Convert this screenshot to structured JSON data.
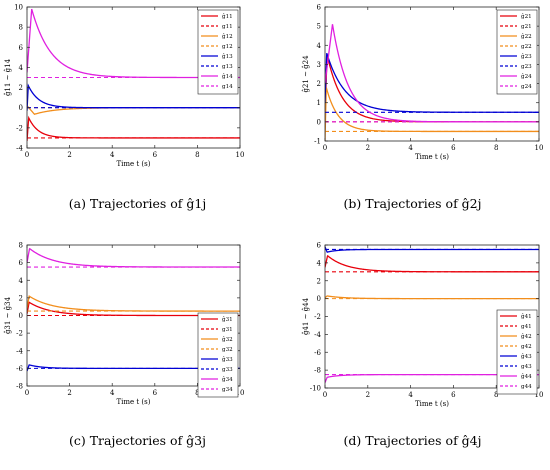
{
  "chart_data": [
    {
      "type": "line",
      "caption": "(a) Trajectories of ĝ1j",
      "xlabel": "Time t (s)",
      "ylabel": "ĝ11 ~ ĝ14",
      "xlim": [
        0,
        10
      ],
      "ylim": [
        -4,
        10
      ],
      "xticks": [
        0,
        2,
        4,
        6,
        8,
        10
      ],
      "yticks": [
        -4,
        -2,
        0,
        2,
        4,
        6,
        8,
        10
      ],
      "legend_position": "top-right",
      "series": [
        {
          "name": "ĝ11",
          "color": "#e8000b",
          "dash": false,
          "target": -3,
          "start": -3.3,
          "peak": -1.0,
          "peak_t": 0.08,
          "tau": 0.45
        },
        {
          "name": "g11",
          "color": "#e8000b",
          "dash": true,
          "const": -3
        },
        {
          "name": "ĝ12",
          "color": "#f28e1c",
          "dash": false,
          "target": 0,
          "start": 0.2,
          "peak": -0.65,
          "peak_t": 0.35,
          "tau": 1.0
        },
        {
          "name": "g12",
          "color": "#f28e1c",
          "dash": true,
          "const": 0
        },
        {
          "name": "ĝ13",
          "color": "#0000d4",
          "dash": false,
          "target": 0,
          "start": -0.3,
          "peak": 2.2,
          "peak_t": 0.06,
          "tau": 0.5
        },
        {
          "name": "g13",
          "color": "#0000d4",
          "dash": true,
          "const": 0
        },
        {
          "name": "ĝ14",
          "color": "#e020e0",
          "dash": false,
          "target": 3,
          "start": 3.5,
          "peak": 9.8,
          "peak_t": 0.22,
          "tau": 0.9
        },
        {
          "name": "g14",
          "color": "#e020e0",
          "dash": true,
          "const": 3
        }
      ]
    },
    {
      "type": "line",
      "caption": "(b) Trajectories of ĝ2j",
      "xlabel": "Time t (s)",
      "ylabel": "ĝ21 ~ ĝ24",
      "xlim": [
        0,
        10
      ],
      "ylim": [
        -1,
        6
      ],
      "xticks": [
        0,
        2,
        4,
        6,
        8,
        10
      ],
      "yticks": [
        -1,
        0,
        1,
        2,
        3,
        4,
        5,
        6
      ],
      "legend_position": "top-right",
      "series": [
        {
          "name": "ĝ21",
          "color": "#e8000b",
          "dash": false,
          "target": 0,
          "start": 0.5,
          "peak": 3.5,
          "peak_t": 0.1,
          "tau": 0.7
        },
        {
          "name": "g21",
          "color": "#e8000b",
          "dash": true,
          "const": 0
        },
        {
          "name": "ĝ22",
          "color": "#f28e1c",
          "dash": false,
          "target": -0.5,
          "start": -1.0,
          "peak": 1.8,
          "peak_t": 0.06,
          "tau": 0.55
        },
        {
          "name": "g22",
          "color": "#f28e1c",
          "dash": true,
          "const": -0.5
        },
        {
          "name": "ĝ23",
          "color": "#0000d4",
          "dash": false,
          "target": 0.5,
          "start": 1.0,
          "peak": 3.6,
          "peak_t": 0.08,
          "tau": 0.85
        },
        {
          "name": "g23",
          "color": "#0000d4",
          "dash": true,
          "const": 0.5
        },
        {
          "name": "ĝ24",
          "color": "#e020e0",
          "dash": false,
          "target": 0,
          "start": 2.0,
          "peak": 5.1,
          "peak_t": 0.35,
          "tau": 0.75
        },
        {
          "name": "g24",
          "color": "#e020e0",
          "dash": true,
          "const": 0
        }
      ]
    },
    {
      "type": "line",
      "caption": "(c) Trajectories of ĝ3j",
      "xlabel": "Time t (s)",
      "ylabel": "ĝ31 ~ ĝ34",
      "xlim": [
        0,
        10
      ],
      "ylim": [
        -8,
        8
      ],
      "xticks": [
        0,
        2,
        4,
        6,
        8,
        10
      ],
      "yticks": [
        -8,
        -6,
        -4,
        -2,
        0,
        2,
        4,
        6,
        8
      ],
      "legend_position": "bottom-right",
      "series": [
        {
          "name": "ĝ31",
          "color": "#e8000b",
          "dash": false,
          "target": 0,
          "start": 0.2,
          "peak": 1.5,
          "peak_t": 0.1,
          "tau": 1.0
        },
        {
          "name": "g31",
          "color": "#e8000b",
          "dash": true,
          "const": 0
        },
        {
          "name": "ĝ32",
          "color": "#f28e1c",
          "dash": false,
          "target": 0.5,
          "start": 0.8,
          "peak": 2.2,
          "peak_t": 0.1,
          "tau": 1.1
        },
        {
          "name": "g32",
          "color": "#f28e1c",
          "dash": true,
          "const": 0.5
        },
        {
          "name": "ĝ33",
          "color": "#0000d4",
          "dash": false,
          "target": -6,
          "start": -6.3,
          "peak": -5.6,
          "peak_t": 0.1,
          "tau": 0.6
        },
        {
          "name": "g33",
          "color": "#0000d4",
          "dash": true,
          "const": -6
        },
        {
          "name": "ĝ34",
          "color": "#e020e0",
          "dash": false,
          "target": 5.5,
          "start": 6.0,
          "peak": 7.6,
          "peak_t": 0.12,
          "tau": 1.1
        },
        {
          "name": "g34",
          "color": "#e020e0",
          "dash": true,
          "const": 5.5
        }
      ]
    },
    {
      "type": "line",
      "caption": "(d) Trajectories of ĝ4j",
      "xlabel": "Time t (s)",
      "ylabel": "ĝ41 ~ ĝ44",
      "xlim": [
        0,
        10
      ],
      "ylim": [
        -10,
        6
      ],
      "xticks": [
        0,
        2,
        4,
        6,
        8,
        10
      ],
      "yticks": [
        -10,
        -8,
        -6,
        -4,
        -2,
        0,
        2,
        4,
        6
      ],
      "legend_position": "middle-right",
      "series": [
        {
          "name": "ĝ41",
          "color": "#e8000b",
          "dash": false,
          "target": 3,
          "start": 3.5,
          "peak": 4.8,
          "peak_t": 0.12,
          "tau": 0.9
        },
        {
          "name": "g41",
          "color": "#e8000b",
          "dash": true,
          "const": 3
        },
        {
          "name": "ĝ42",
          "color": "#f28e1c",
          "dash": false,
          "target": 0,
          "start": 0.1,
          "peak": 0.3,
          "peak_t": 0.1,
          "tau": 0.8
        },
        {
          "name": "g42",
          "color": "#f28e1c",
          "dash": true,
          "const": 0
        },
        {
          "name": "ĝ43",
          "color": "#0000d4",
          "dash": false,
          "target": 5.5,
          "start": 5.8,
          "peak": 5.2,
          "peak_t": 0.1,
          "tau": 0.5
        },
        {
          "name": "g43",
          "color": "#0000d4",
          "dash": true,
          "const": 5.5
        },
        {
          "name": "ĝ44",
          "color": "#e020e0",
          "dash": false,
          "target": -8.5,
          "start": -9.4,
          "peak": -8.8,
          "peak_t": 0.1,
          "tau": 0.6
        },
        {
          "name": "g44",
          "color": "#e020e0",
          "dash": true,
          "const": -8.5
        }
      ]
    }
  ]
}
